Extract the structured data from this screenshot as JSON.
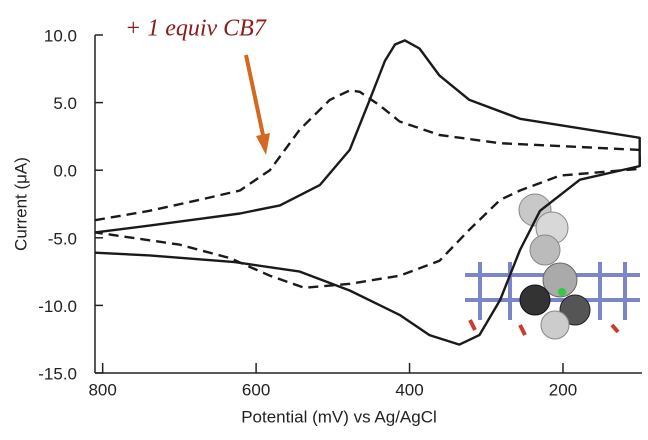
{
  "chart_data": {
    "type": "line",
    "annotation": "+ 1 equiv CB7",
    "x_label": "Potential (mV) vs Ag/AgCl",
    "y_label": "Current (μA)",
    "xlim": [
      810,
      97
    ],
    "xticks": [
      800,
      600,
      400,
      200
    ],
    "ylim": [
      -15,
      10
    ],
    "yticks": [
      {
        "value": 10,
        "label": "10.0"
      },
      {
        "value": 5,
        "label": "5.0"
      },
      {
        "value": 0,
        "label": "0.0"
      },
      {
        "value": -5,
        "label": "-5.0"
      },
      {
        "value": -10,
        "label": "-10.0"
      },
      {
        "value": -15,
        "label": "-15.0"
      }
    ],
    "series": [
      {
        "color": "#1a1a1a",
        "linestyle": "solid",
        "x": [
          810,
          739,
          674,
          621,
          569,
          517,
          478,
          452,
          432,
          419,
          406,
          387,
          361,
          322,
          256,
          178,
          100,
          100,
          178,
          230,
          256,
          282,
          309,
          335,
          374,
          413,
          478,
          543,
          628,
          739,
          810
        ],
        "values": [
          -4.6,
          -4.1,
          -3.6,
          -3.2,
          -2.6,
          -1.1,
          1.5,
          5.2,
          8.1,
          9.3,
          9.6,
          9.0,
          7.0,
          5.2,
          3.8,
          3.1,
          2.4,
          0.3,
          -0.7,
          -3.0,
          -5.9,
          -9.6,
          -12.2,
          -12.9,
          -12.2,
          -10.7,
          -8.9,
          -7.5,
          -6.8,
          -6.3,
          -6.1
        ]
      },
      {
        "color": "#1a1a1a",
        "linestyle": "dashed",
        "x": [
          810,
          739,
          674,
          621,
          582,
          543,
          504,
          478,
          465,
          439,
          413,
          361,
          282,
          100,
          100,
          204,
          256,
          282,
          322,
          361,
          413,
          478,
          537,
          582,
          634,
          700,
          810
        ],
        "values": [
          -3.7,
          -3.0,
          -2.2,
          -1.5,
          0.0,
          3.0,
          5.2,
          5.9,
          5.8,
          4.8,
          3.6,
          2.6,
          2.0,
          1.5,
          0.1,
          -0.4,
          -1.5,
          -2.2,
          -4.4,
          -6.7,
          -7.8,
          -8.4,
          -8.7,
          -7.8,
          -6.5,
          -5.5,
          -4.6
        ]
      }
    ]
  }
}
